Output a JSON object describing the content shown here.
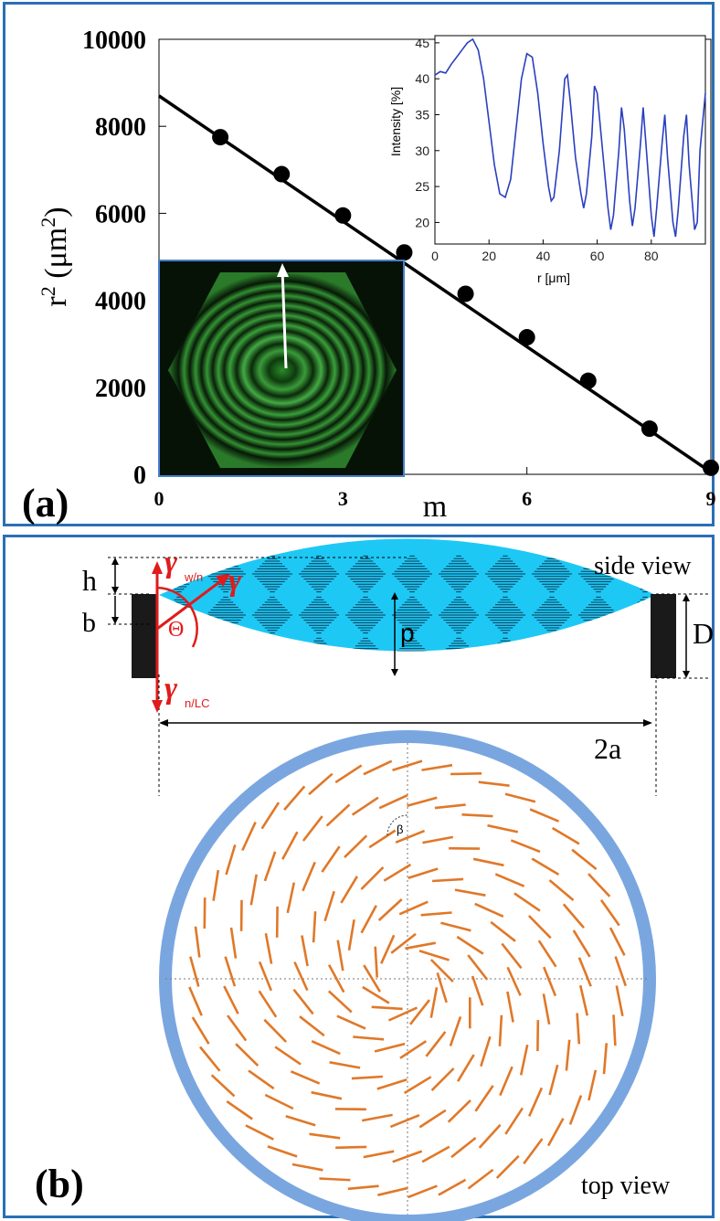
{
  "panel_a": {
    "label": "(a)",
    "chart_data": {
      "type": "scatter",
      "xlabel": "m",
      "ylabel_base": "r",
      "ylabel_sup": "2",
      "ylabel_unit": "(μm",
      "ylabel_unit_sup": "2",
      "ylabel_close": ")",
      "xlim": [
        0,
        9
      ],
      "ylim": [
        0,
        10000
      ],
      "x_ticks": [
        0,
        3,
        6,
        9
      ],
      "y_ticks": [
        0,
        2000,
        4000,
        6000,
        8000,
        10000
      ],
      "x_tick_labels": [
        "0",
        "3",
        "6",
        "9"
      ],
      "y_tick_labels": [
        "0",
        "2000",
        "4000",
        "6000",
        "8000",
        "10000"
      ],
      "points": [
        {
          "x": 1,
          "y": 7750
        },
        {
          "x": 2,
          "y": 6900
        },
        {
          "x": 3,
          "y": 5950
        },
        {
          "x": 4,
          "y": 5100
        },
        {
          "x": 5,
          "y": 4150
        },
        {
          "x": 6,
          "y": 3150
        },
        {
          "x": 7,
          "y": 2150
        },
        {
          "x": 8,
          "y": 1050
        },
        {
          "x": 9,
          "y": 150
        }
      ],
      "fit_line": {
        "x0": 0,
        "y0": 8700,
        "x1": 9,
        "y1": 50
      },
      "inset": {
        "type": "line",
        "xlabel": "r [μm]",
        "ylabel": "Intensity [%]",
        "xlim": [
          0,
          100
        ],
        "ylim": [
          17,
          46
        ],
        "x_ticks": [
          0,
          20,
          40,
          60,
          80
        ],
        "y_ticks": [
          20,
          25,
          30,
          35,
          40,
          45
        ],
        "x_tick_labels": [
          "0",
          "20",
          "40",
          "60",
          "80"
        ],
        "y_tick_labels": [
          "20",
          "25",
          "30",
          "35",
          "40",
          "45"
        ],
        "color": "#2a3fbf",
        "series": [
          {
            "values": [
              [
                0,
                40.5
              ],
              [
                2,
                41
              ],
              [
                4,
                40.8
              ],
              [
                6,
                42
              ],
              [
                8,
                43
              ],
              [
                10,
                44
              ],
              [
                12,
                45
              ],
              [
                14,
                45.5
              ],
              [
                16,
                44
              ],
              [
                18,
                40
              ],
              [
                20,
                34
              ],
              [
                22,
                28
              ],
              [
                24,
                24
              ],
              [
                26,
                23.5
              ],
              [
                28,
                26
              ],
              [
                30,
                33
              ],
              [
                32,
                40
              ],
              [
                34,
                43.5
              ],
              [
                36,
                43
              ],
              [
                38,
                38
              ],
              [
                40,
                31
              ],
              [
                42,
                25
              ],
              [
                43,
                23
              ],
              [
                44,
                23.5
              ],
              [
                46,
                30
              ],
              [
                48,
                40
              ],
              [
                49,
                40.5
              ],
              [
                50,
                37
              ],
              [
                52,
                29
              ],
              [
                54,
                24
              ],
              [
                55,
                22
              ],
              [
                56,
                24
              ],
              [
                58,
                32
              ],
              [
                59,
                39
              ],
              [
                60,
                38
              ],
              [
                62,
                30
              ],
              [
                64,
                22
              ],
              [
                65,
                19
              ],
              [
                66,
                21
              ],
              [
                68,
                30
              ],
              [
                69,
                36
              ],
              [
                70,
                33
              ],
              [
                72,
                23
              ],
              [
                73,
                19.5
              ],
              [
                74,
                22
              ],
              [
                76,
                31
              ],
              [
                77,
                36
              ],
              [
                78,
                31
              ],
              [
                80,
                21
              ],
              [
                81,
                18
              ],
              [
                82,
                22
              ],
              [
                84,
                31
              ],
              [
                85,
                35
              ],
              [
                86,
                29
              ],
              [
                88,
                20
              ],
              [
                89,
                18
              ],
              [
                90,
                22
              ],
              [
                92,
                32
              ],
              [
                93,
                35
              ],
              [
                94,
                28
              ],
              [
                96,
                19
              ],
              [
                97,
                20
              ],
              [
                98,
                30
              ],
              [
                100,
                38
              ]
            ]
          }
        ]
      }
    }
  },
  "panel_b": {
    "label": "(b)",
    "side_view": "side view",
    "top_view": "top view",
    "label_h": "h",
    "label_b": "b",
    "label_p": "p",
    "label_D": "D",
    "label_2a": "2a",
    "gamma_wn": "w/n",
    "gamma_nlc": "n/LC",
    "gamma_symbol": "γ",
    "theta_symbol": "Θ",
    "beta_symbol": "β",
    "colors": {
      "border": "#2a6fb5",
      "droplet": "#1ec8f5",
      "ring": "#7aa6e0",
      "director": "#e07828",
      "annotation": "#e01b1b"
    }
  }
}
